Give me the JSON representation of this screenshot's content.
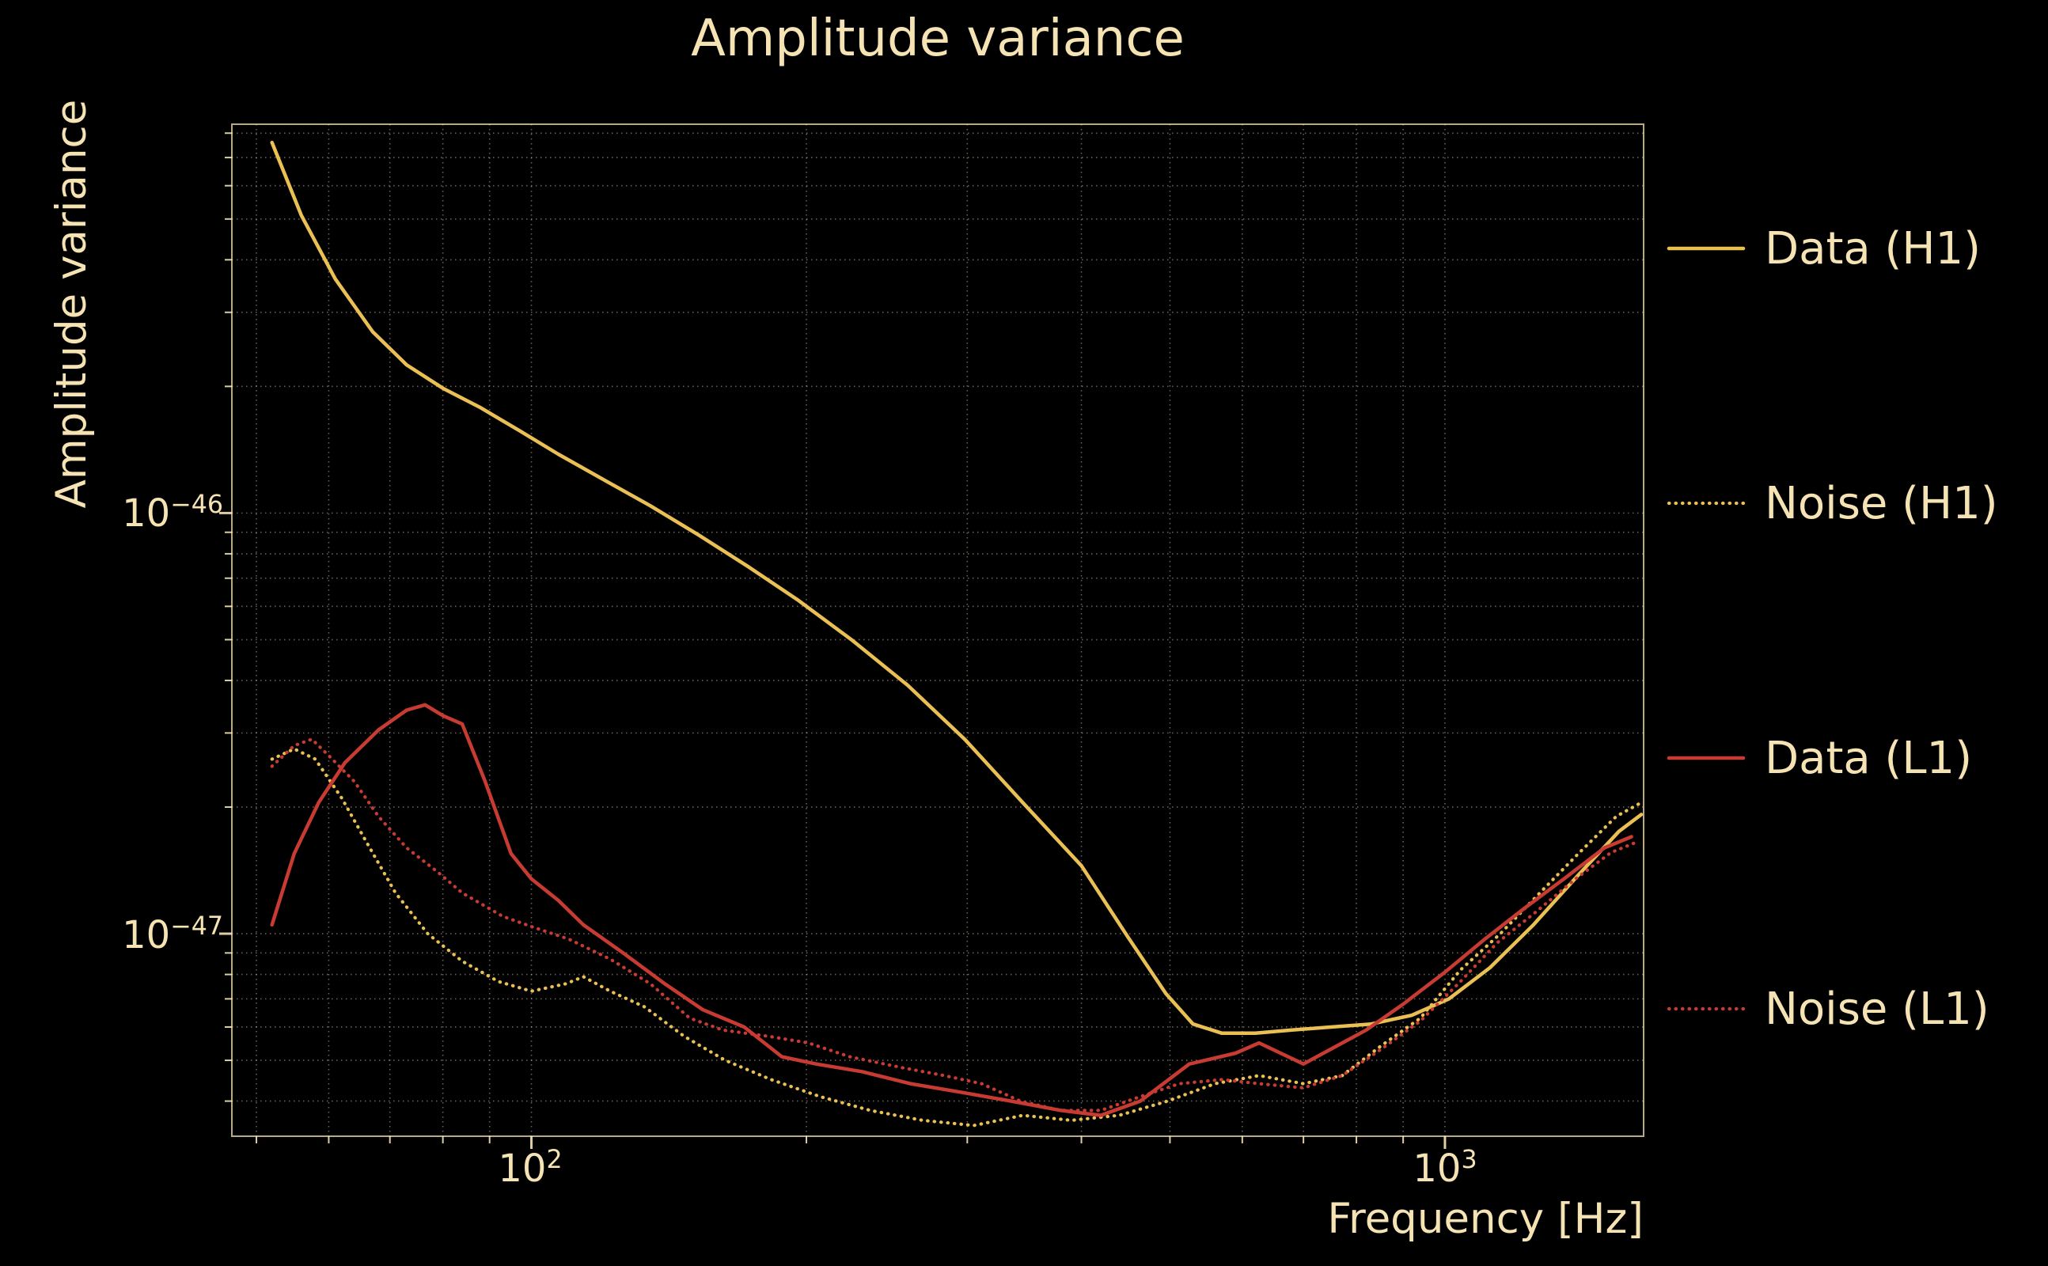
{
  "figure": {
    "background": "#000000",
    "text_color": "#f6e3b4",
    "grid_color": "#f5e9cd",
    "h1_color": "#eac054",
    "l1_color": "#c73b33"
  },
  "chart_data": {
    "type": "line",
    "title": "Amplitude variance",
    "xlabel": "Frequency [Hz]",
    "ylabel": "Amplitude variance",
    "x_scale": "log",
    "y_scale": "log",
    "xlim": [
      47,
      1650
    ],
    "ylim": [
      3.3e-48,
      8.4e-46
    ],
    "grid": true,
    "legend_position": "right-outside",
    "xticks": [
      {
        "base": "10",
        "exp": "2"
      },
      {
        "base": "10",
        "exp": "3"
      }
    ],
    "yticks": [
      {
        "base": "10",
        "exp": "−46"
      },
      {
        "base": "10",
        "exp": "−47"
      }
    ],
    "series": [
      {
        "name": "Data (H1)",
        "color": "#eac054",
        "style": "solid",
        "x": [
          52,
          56,
          61,
          67,
          73,
          80,
          88,
          97,
          107,
          120,
          135,
          152,
          172,
          196,
          224,
          258,
          298,
          345,
          400,
          450,
          495,
          530,
          570,
          620,
          680,
          750,
          830,
          920,
          1010,
          1120,
          1250,
          1400,
          1550,
          1640
        ],
        "y": [
          7.6e-46,
          5.1e-46,
          3.6e-46,
          2.7e-46,
          2.25e-46,
          1.98e-46,
          1.78e-46,
          1.57e-46,
          1.38e-46,
          1.2e-46,
          1.04e-46,
          8.9e-47,
          7.5e-47,
          6.2e-47,
          5e-47,
          3.9e-47,
          2.9e-47,
          2.05e-47,
          1.45e-47,
          9.8e-48,
          7.2e-48,
          6.1e-48,
          5.8e-48,
          5.8e-48,
          5.9e-48,
          6e-48,
          6.1e-48,
          6.4e-48,
          7e-48,
          8.3e-48,
          1.05e-47,
          1.38e-47,
          1.75e-47,
          1.92e-47
        ]
      },
      {
        "name": "Noise (H1)",
        "color": "#eac054",
        "style": "dotted",
        "x": [
          52,
          55,
          58,
          62,
          66,
          71,
          77,
          84,
          92,
          100,
          109,
          114,
          122,
          133,
          147,
          163,
          183,
          207,
          235,
          268,
          305,
          345,
          390,
          440,
          497,
          560,
          626,
          700,
          772,
          850,
          940,
          1040,
          1150,
          1270,
          1400,
          1540,
          1640
        ],
        "y": [
          2.6e-47,
          2.75e-47,
          2.6e-47,
          2.1e-47,
          1.65e-47,
          1.25e-47,
          1e-47,
          8.6e-48,
          7.7e-48,
          7.3e-48,
          7.6e-48,
          7.9e-48,
          7.3e-48,
          6.7e-48,
          5.7e-48,
          5e-48,
          4.5e-48,
          4.1e-48,
          3.8e-48,
          3.6e-48,
          3.5e-48,
          3.7e-48,
          3.6e-48,
          3.7e-48,
          4e-48,
          4.4e-48,
          4.6e-48,
          4.4e-48,
          4.6e-48,
          5.4e-48,
          6.3e-48,
          8.2e-48,
          1e-47,
          1.25e-47,
          1.55e-47,
          1.9e-47,
          2.05e-47
        ]
      },
      {
        "name": "Data (L1)",
        "color": "#c73b33",
        "style": "solid",
        "x": [
          52,
          55,
          58.5,
          62.5,
          68,
          73,
          76.5,
          80,
          84,
          89,
          95,
          100,
          107,
          114,
          126,
          140,
          154,
          171,
          188,
          205,
          230,
          260,
          295,
          335,
          380,
          420,
          464,
          525,
          590,
          626,
          700,
          772,
          820,
          900,
          1000,
          1105,
          1222,
          1350,
          1495,
          1600
        ],
        "y": [
          1.05e-47,
          1.55e-47,
          2.05e-47,
          2.55e-47,
          3.05e-47,
          3.4e-47,
          3.5e-47,
          3.3e-47,
          3.15e-47,
          2.3e-47,
          1.55e-47,
          1.35e-47,
          1.2e-47,
          1.05e-47,
          9e-48,
          7.6e-48,
          6.6e-48,
          6e-48,
          5.1e-48,
          4.9e-48,
          4.7e-48,
          4.4e-48,
          4.2e-48,
          4e-48,
          3.8e-48,
          3.7e-48,
          4e-48,
          4.9e-48,
          5.2e-48,
          5.5e-48,
          4.9e-48,
          5.5e-48,
          5.9e-48,
          6.8e-48,
          8.1e-48,
          9.7e-48,
          1.15e-47,
          1.35e-47,
          1.6e-47,
          1.7e-47
        ]
      },
      {
        "name": "Noise (L1)",
        "color": "#c73b33",
        "style": "dotted",
        "x": [
          52,
          55,
          57.5,
          60,
          64,
          68,
          73,
          79,
          84,
          93,
          100,
          110,
          122,
          135,
          149,
          162,
          182,
          201,
          223,
          255,
          283,
          311,
          343,
          380,
          420,
          464,
          512,
          570,
          626,
          700,
          772,
          850,
          940,
          1040,
          1140,
          1260,
          1390,
          1520,
          1620
        ],
        "y": [
          2.5e-47,
          2.8e-47,
          2.9e-47,
          2.65e-47,
          2.3e-47,
          1.9e-47,
          1.6e-47,
          1.4e-47,
          1.25e-47,
          1.1e-47,
          1.04e-47,
          9.7e-48,
          8.7e-48,
          7.6e-48,
          6.3e-48,
          5.9e-48,
          5.7e-48,
          5.5e-48,
          5.1e-48,
          4.8e-48,
          4.6e-48,
          4.4e-48,
          4e-48,
          3.8e-48,
          3.8e-48,
          4.1e-48,
          4.4e-48,
          4.5e-48,
          4.4e-48,
          4.3e-48,
          4.6e-48,
          5.3e-48,
          6.2e-48,
          7.7e-48,
          9.5e-48,
          1.13e-47,
          1.35e-47,
          1.56e-47,
          1.65e-47
        ]
      }
    ]
  }
}
